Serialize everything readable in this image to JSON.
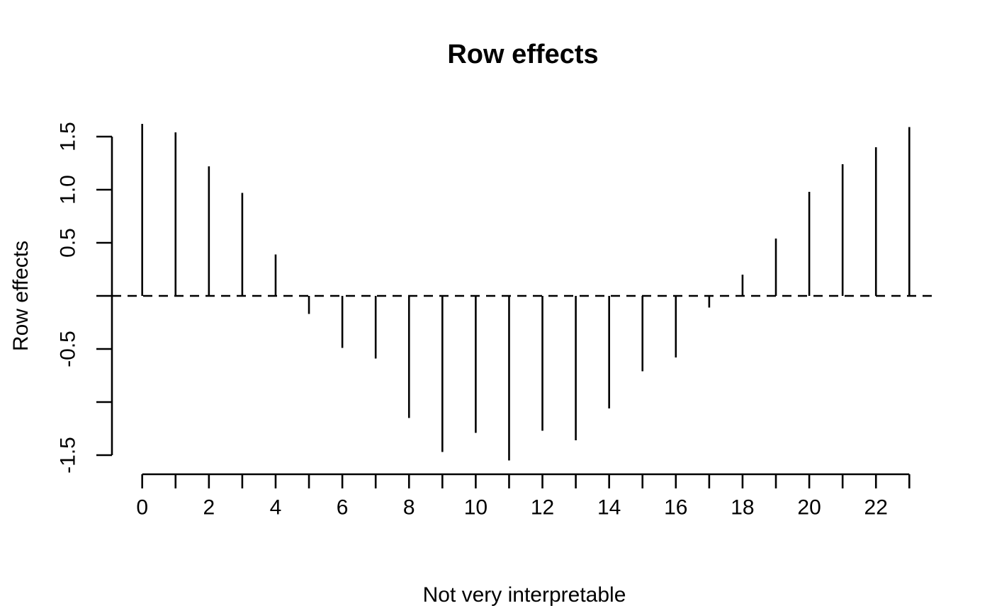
{
  "page": {
    "background": "#ffffff",
    "foreground": "#000000"
  },
  "chart_data": {
    "type": "bar",
    "subtype": "stem",
    "title": "Row effects",
    "xlabel": "Not very interpretable",
    "ylabel": "Row effects",
    "x": [
      0,
      1,
      2,
      3,
      4,
      5,
      6,
      7,
      8,
      9,
      10,
      11,
      12,
      13,
      14,
      15,
      16,
      17,
      18,
      19,
      20,
      21,
      22,
      23
    ],
    "values": [
      1.62,
      1.54,
      1.22,
      0.97,
      0.39,
      -0.17,
      -0.49,
      -0.59,
      -1.15,
      -1.47,
      -1.29,
      -1.55,
      -1.27,
      -1.36,
      -1.06,
      -0.71,
      -0.58,
      -0.11,
      0.2,
      0.54,
      0.98,
      1.24,
      1.4,
      1.59
    ],
    "xlim": [
      0,
      23
    ],
    "ylim": [
      -1.55,
      1.65
    ],
    "x_tick_positions": [
      0,
      1,
      2,
      3,
      4,
      5,
      6,
      7,
      8,
      9,
      10,
      11,
      12,
      13,
      14,
      15,
      16,
      17,
      18,
      19,
      20,
      21,
      22,
      23
    ],
    "x_tick_labels": [
      "0",
      "",
      "2",
      "",
      "4",
      "",
      "6",
      "",
      "8",
      "",
      "10",
      "",
      "12",
      "",
      "14",
      "",
      "16",
      "",
      "18",
      "",
      "20",
      "",
      "22",
      ""
    ],
    "y_tick_positions": [
      1.5,
      1.0,
      0.5,
      0.0,
      -0.5,
      -1.0,
      -1.5
    ],
    "y_tick_labels": [
      "1.5",
      "1.0",
      "0.5",
      "",
      "-0.5",
      "",
      "-1.5"
    ],
    "zero_line": {
      "y": 0,
      "style": "dashed"
    },
    "grid": false,
    "legend_position": "none",
    "colors": {
      "stem": "#000000",
      "axis": "#000000",
      "text": "#000000",
      "background": "#ffffff"
    }
  }
}
